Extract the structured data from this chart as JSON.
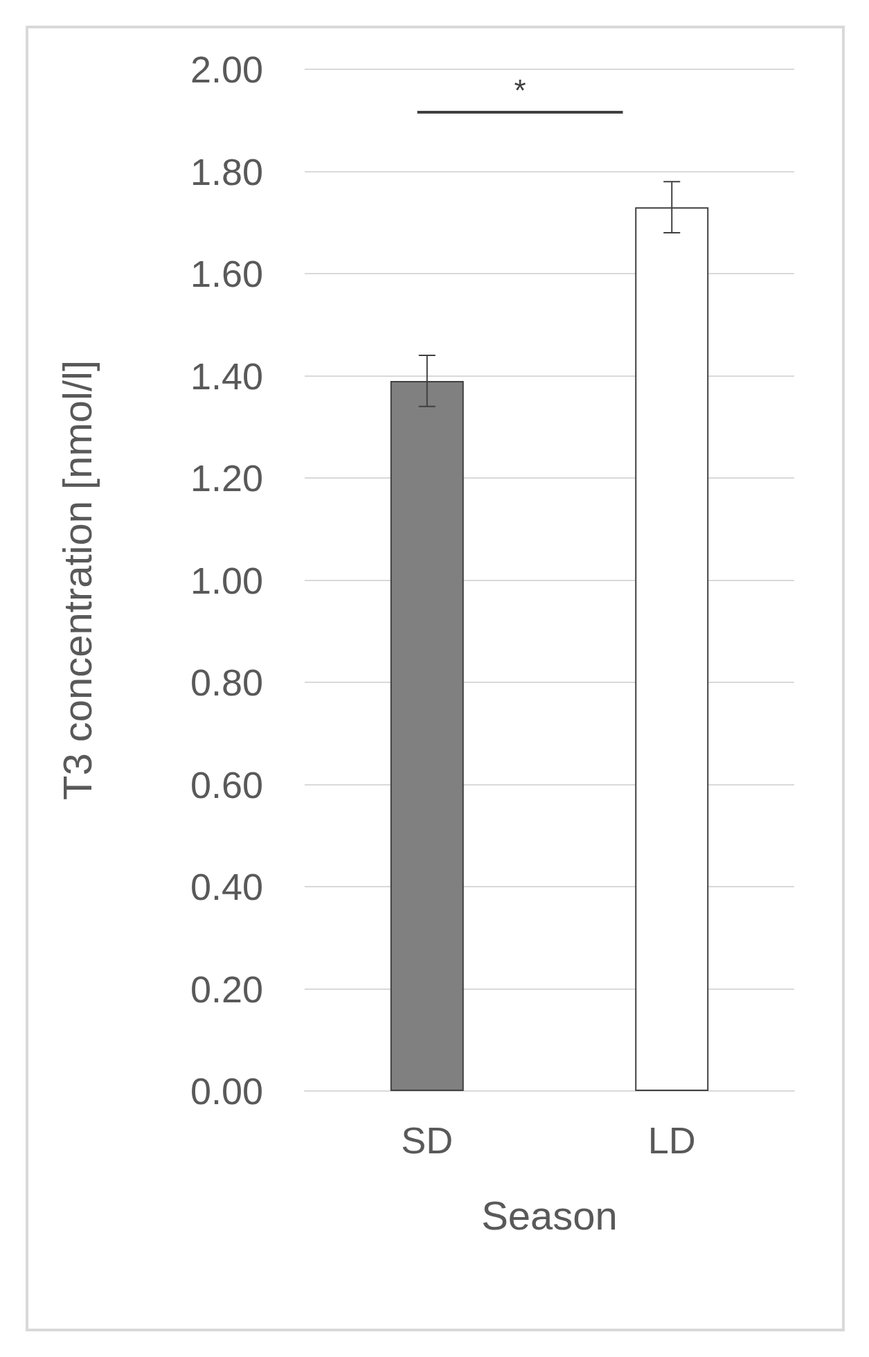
{
  "chart_data": {
    "type": "bar",
    "xlabel": "Season",
    "ylabel": "T3 concentration [nmol/l]",
    "categories": [
      "SD",
      "LD"
    ],
    "values": [
      1.39,
      1.73
    ],
    "errors": [
      0.05,
      0.05
    ],
    "colors": [
      "#808080",
      "#ffffff"
    ],
    "ylim": [
      0,
      2
    ],
    "yticks": [
      {
        "value": 0,
        "label": "0.00"
      },
      {
        "value": 0.2,
        "label": "0.20"
      },
      {
        "value": 0.4,
        "label": "0.40"
      },
      {
        "value": 0.6,
        "label": "0.60"
      },
      {
        "value": 0.8,
        "label": "0.80"
      },
      {
        "value": 1,
        "label": "1.00"
      },
      {
        "value": 1.2,
        "label": "1.20"
      },
      {
        "value": 1.4,
        "label": "1.40"
      },
      {
        "value": 1.6,
        "label": "1.60"
      },
      {
        "value": 1.8,
        "label": "1.80"
      },
      {
        "value": 2,
        "label": "2.00"
      }
    ],
    "grid": "y",
    "annotations": [
      "*"
    ]
  }
}
